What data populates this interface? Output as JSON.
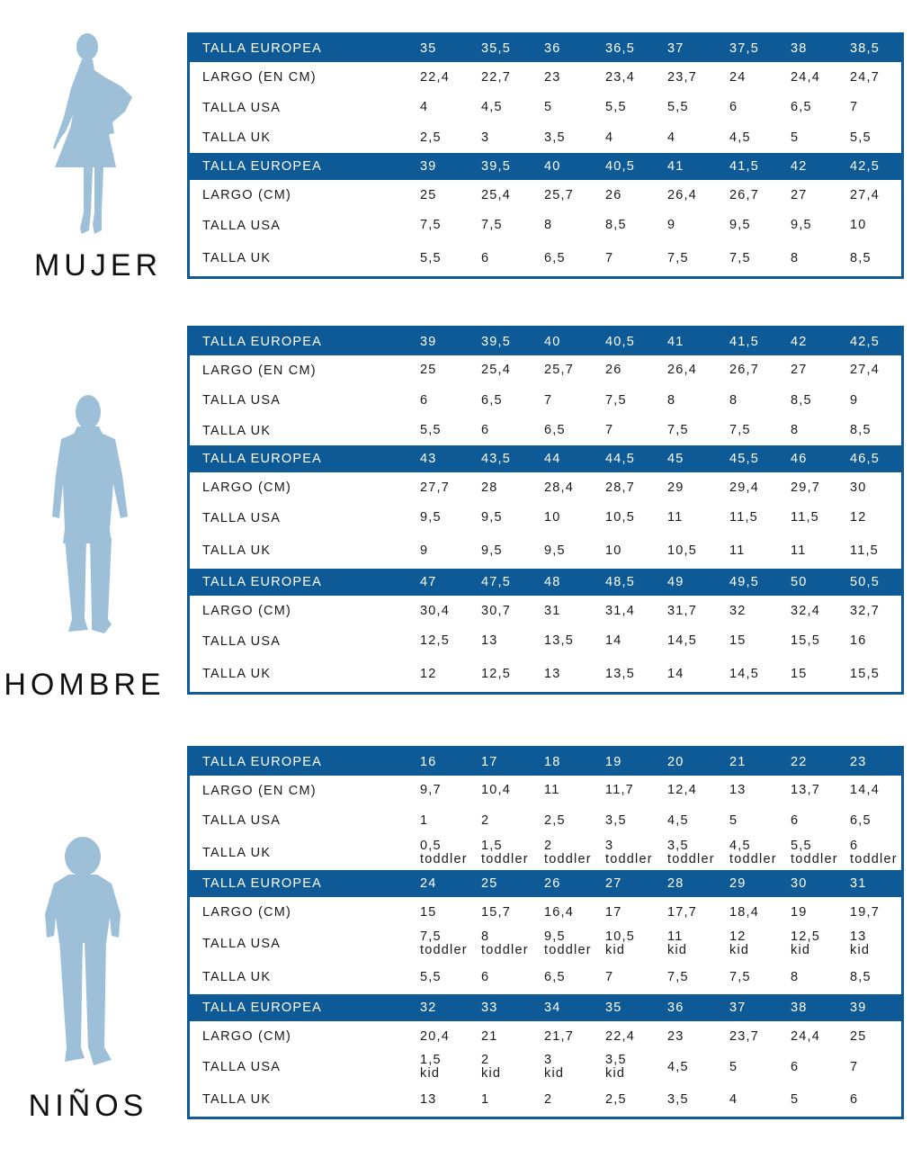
{
  "sections": [
    {
      "key": "mujer",
      "label": "MUJER",
      "figure_icon": "woman-silhouette-icon",
      "blocks": [
        {
          "header": [
            "TALLA EUROPEA",
            "35",
            "35,5",
            "36",
            "36,5",
            "37",
            "37,5",
            "38",
            "38,5"
          ],
          "rows": [
            [
              "LARGO (EN CM)",
              "22,4",
              "22,7",
              "23",
              "23,4",
              "23,7",
              "24",
              "24,4",
              "24,7"
            ],
            [
              "TALLA USA",
              "4",
              "4,5",
              "5",
              "5,5",
              "5,5",
              "6",
              "6,5",
              "7"
            ],
            [
              "TALLA UK",
              "2,5",
              "3",
              "3,5",
              "4",
              "4",
              "4,5",
              "5",
              "5,5"
            ]
          ]
        },
        {
          "header": [
            "TALLA EUROPEA",
            "39",
            "39,5",
            "40",
            "40,5",
            "41",
            "41,5",
            "42",
            "42,5"
          ],
          "rows": [
            [
              "LARGO (CM)",
              "25",
              "25,4",
              "25,7",
              "26",
              "26,4",
              "26,7",
              "27",
              "27,4"
            ],
            [
              "TALLA USA",
              "7,5",
              "7,5",
              "8",
              "8,5",
              "9",
              "9,5",
              "9,5",
              "10"
            ],
            [
              "TALLA UK",
              "5,5",
              "6",
              "6,5",
              "7",
              "7,5",
              "7,5",
              "8",
              "8,5"
            ]
          ]
        }
      ]
    },
    {
      "key": "hombre",
      "label": "HOMBRE",
      "figure_icon": "man-silhouette-icon",
      "blocks": [
        {
          "header": [
            "TALLA EUROPEA",
            "39",
            "39,5",
            "40",
            "40,5",
            "41",
            "41,5",
            "42",
            "42,5"
          ],
          "rows": [
            [
              "LARGO (EN CM)",
              "25",
              "25,4",
              "25,7",
              "26",
              "26,4",
              "26,7",
              "27",
              "27,4"
            ],
            [
              "TALLA USA",
              "6",
              "6,5",
              "7",
              "7,5",
              "8",
              "8",
              "8,5",
              "9"
            ],
            [
              "TALLA UK",
              "5,5",
              "6",
              "6,5",
              "7",
              "7,5",
              "7,5",
              "8",
              "8,5"
            ]
          ]
        },
        {
          "header": [
            "TALLA EUROPEA",
            "43",
            "43,5",
            "44",
            "44,5",
            "45",
            "45,5",
            "46",
            "46,5"
          ],
          "rows": [
            [
              "LARGO (CM)",
              "27,7",
              "28",
              "28,4",
              "28,7",
              "29",
              "29,4",
              "29,7",
              "30"
            ],
            [
              "TALLA USA",
              "9,5",
              "9,5",
              "10",
              "10,5",
              "11",
              "11,5",
              "11,5",
              "12"
            ],
            [
              "TALLA UK",
              "9",
              "9,5",
              "9,5",
              "10",
              "10,5",
              "11",
              "11",
              "11,5"
            ]
          ]
        },
        {
          "header": [
            "TALLA EUROPEA",
            "47",
            "47,5",
            "48",
            "48,5",
            "49",
            "49,5",
            "50",
            "50,5"
          ],
          "rows": [
            [
              "LARGO (CM)",
              "30,4",
              "30,7",
              "31",
              "31,4",
              "31,7",
              "32",
              "32,4",
              "32,7"
            ],
            [
              "TALLA USA",
              "12,5",
              "13",
              "13,5",
              "14",
              "14,5",
              "15",
              "15,5",
              "16"
            ],
            [
              "TALLA UK",
              "12",
              "12,5",
              "13",
              "13,5",
              "14",
              "14,5",
              "15",
              "15,5"
            ]
          ]
        }
      ]
    },
    {
      "key": "ninos",
      "label": "NIÑOS",
      "figure_icon": "child-silhouette-icon",
      "blocks": [
        {
          "header": [
            "TALLA EUROPEA",
            "16",
            "17",
            "18",
            "19",
            "20",
            "21",
            "22",
            "23"
          ],
          "rows": [
            [
              "LARGO (EN CM)",
              "9,7",
              "10,4",
              "11",
              "11,7",
              "12,4",
              "13",
              "13,7",
              "14,4"
            ],
            [
              "TALLA USA",
              "1",
              "2",
              "2,5",
              "3,5",
              "4,5",
              "5",
              "6",
              "6,5"
            ],
            [
              "TALLA UK",
              "0,5\ntoddler",
              "1,5\ntoddler",
              "2\ntoddler",
              "3\ntoddler",
              "3,5\ntoddler",
              "4,5\ntoddler",
              "5,5\ntoddler",
              "6\ntoddler"
            ]
          ]
        },
        {
          "header": [
            "TALLA EUROPEA",
            "24",
            "25",
            "26",
            "27",
            "28",
            "29",
            "30",
            "31"
          ],
          "rows": [
            [
              "LARGO (CM)",
              "15",
              "15,7",
              "16,4",
              "17",
              "17,7",
              "18,4",
              "19",
              "19,7"
            ],
            [
              "TALLA USA",
              "7,5\ntoddler",
              "8\ntoddler",
              "9,5\ntoddler",
              "10,5\nkid",
              "11\nkid",
              "12\nkid",
              "12,5\nkid",
              "13\nkid"
            ],
            [
              "TALLA UK",
              "5,5",
              "6",
              "6,5",
              "7",
              "7,5",
              "7,5",
              "8",
              "8,5"
            ]
          ]
        },
        {
          "header": [
            "TALLA EUROPEA",
            "32",
            "33",
            "34",
            "35",
            "36",
            "37",
            "38",
            "39"
          ],
          "rows": [
            [
              "LARGO (CM)",
              "20,4",
              "21",
              "21,7",
              "22,4",
              "23",
              "23,7",
              "24,4",
              "25"
            ],
            [
              "TALLA USA",
              "1,5\nkid",
              "2\nkid",
              "3\nkid",
              "3,5\nkid",
              "4,5",
              "5",
              "6",
              "7"
            ],
            [
              "TALLA UK",
              "13",
              "1",
              "2",
              "2,5",
              "3,5",
              "4",
              "5",
              "6"
            ]
          ]
        }
      ]
    }
  ],
  "colors": {
    "header_bg": "#0e5a96",
    "figure": "#9dc0d8"
  }
}
